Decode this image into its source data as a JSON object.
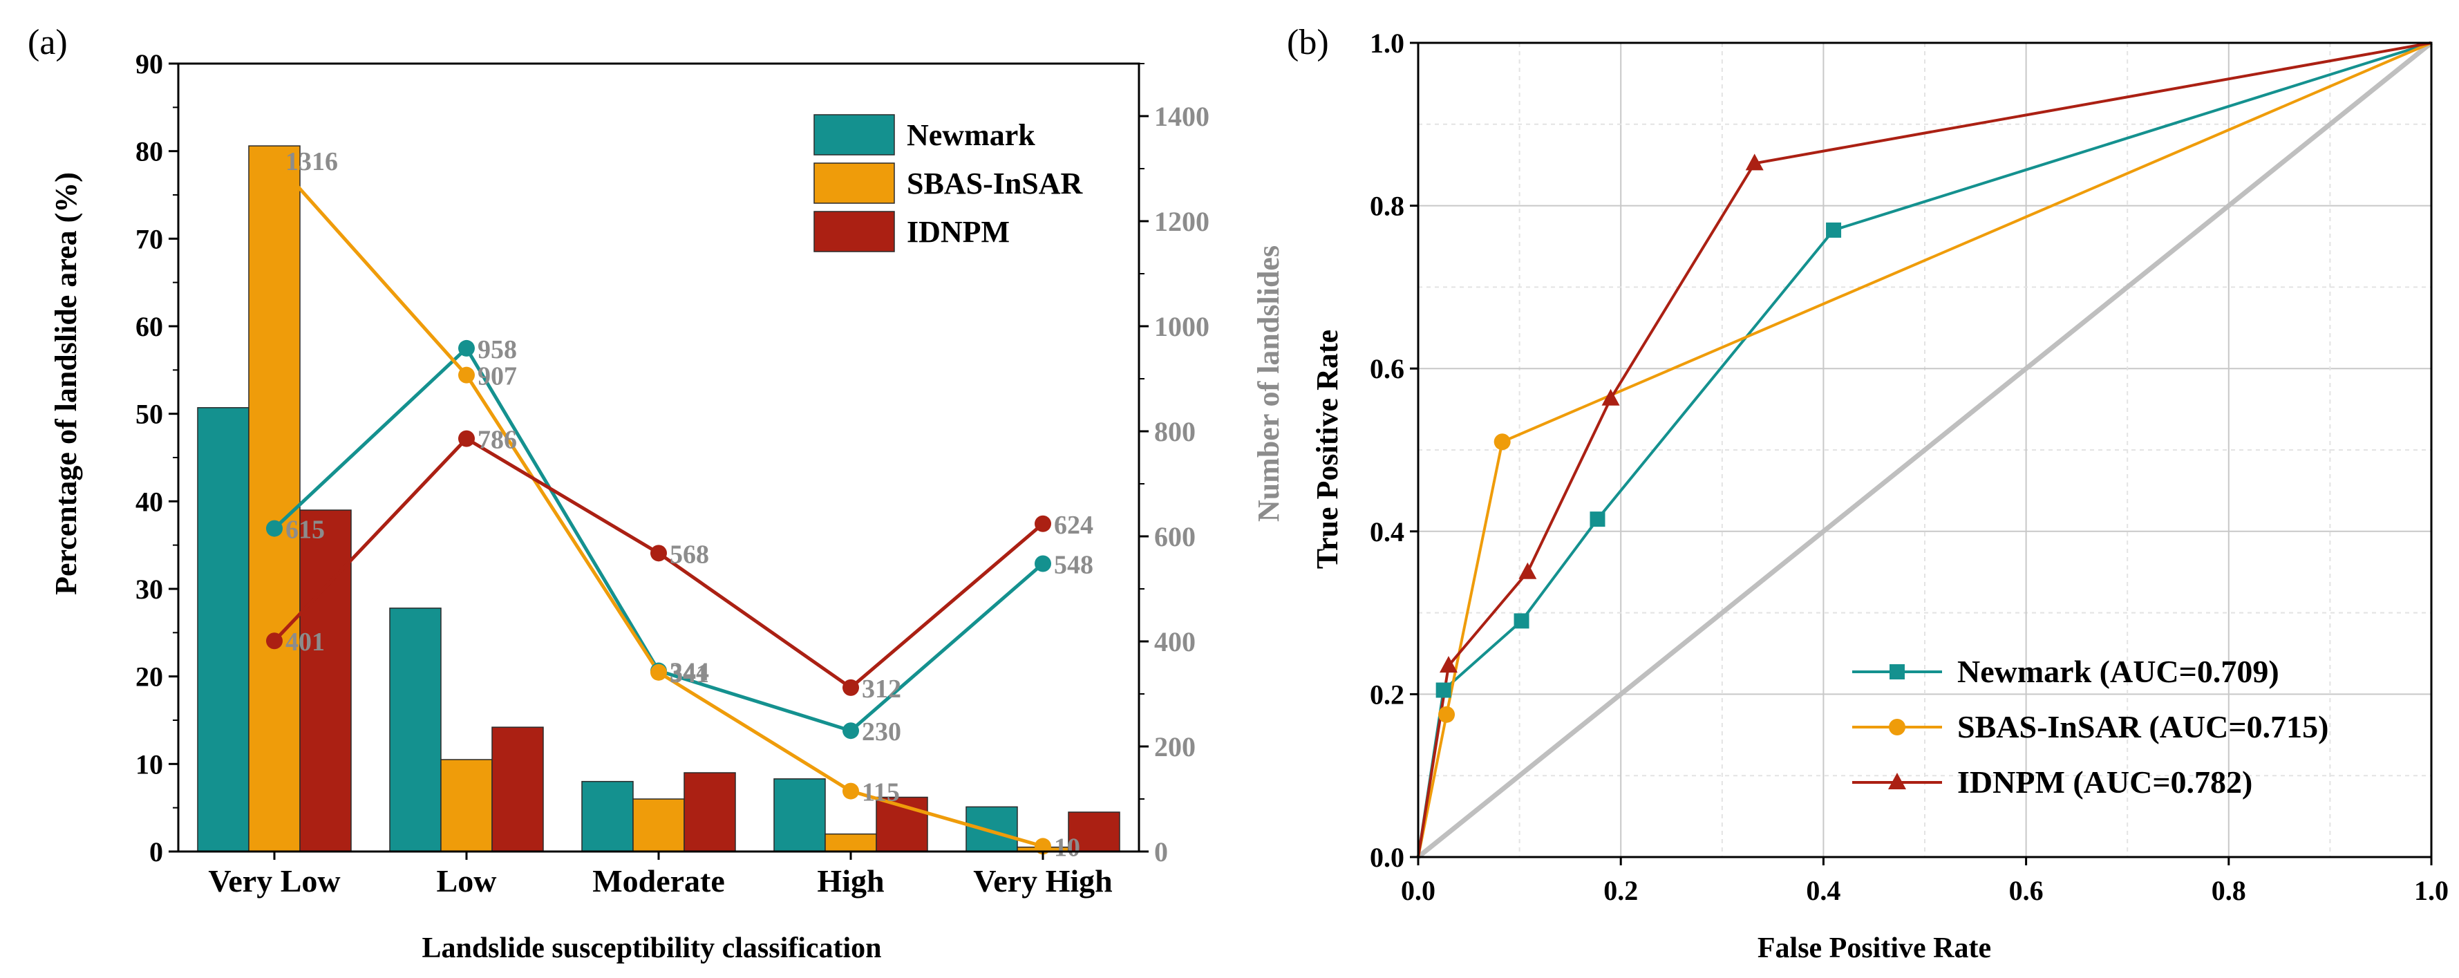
{
  "chart_data": [
    {
      "type": "bar+line",
      "panel_label": "(a)",
      "title": "",
      "xlabel": "Landslide susceptibility classification",
      "ylabel": "Percentage of landslide area (%)",
      "y2label": "Number of landslides",
      "categories": [
        "Very Low",
        "Low",
        "Moderate",
        "High",
        "Very High"
      ],
      "ylim": [
        0,
        90
      ],
      "yticks": [
        0,
        10,
        20,
        30,
        40,
        50,
        60,
        70,
        80,
        90
      ],
      "y2lim": [
        0,
        1500
      ],
      "y2ticks": [
        0,
        200,
        400,
        600,
        800,
        1000,
        1200,
        1400
      ],
      "series": [
        {
          "name": "Newmark",
          "color": "#14918f",
          "bar_values": [
            50.7,
            27.8,
            8.0,
            8.3,
            5.1
          ],
          "line_values": [
            615,
            958,
            344,
            230,
            548
          ]
        },
        {
          "name": "SBAS-InSAR",
          "color": "#ef9c0a",
          "bar_values": [
            80.6,
            10.5,
            6.0,
            2.0,
            0.5
          ],
          "line_values": [
            1316,
            907,
            341,
            115,
            10
          ]
        },
        {
          "name": "IDNPM",
          "color": "#ab2013",
          "bar_values": [
            39.0,
            14.2,
            9.0,
            6.2,
            4.5
          ],
          "line_values": [
            401,
            786,
            568,
            312,
            624
          ]
        }
      ],
      "line_labels": [
        {
          "series": 0,
          "index": 0,
          "text": "615"
        },
        {
          "series": 0,
          "index": 1,
          "text": "958"
        },
        {
          "series": 0,
          "index": 2,
          "text": "344"
        },
        {
          "series": 0,
          "index": 3,
          "text": "230"
        },
        {
          "series": 0,
          "index": 4,
          "text": "548"
        },
        {
          "series": 1,
          "index": 0,
          "text": "1316"
        },
        {
          "series": 1,
          "index": 1,
          "text": "907"
        },
        {
          "series": 1,
          "index": 2,
          "text": "341"
        },
        {
          "series": 1,
          "index": 3,
          "text": "115"
        },
        {
          "series": 1,
          "index": 4,
          "text": "10"
        },
        {
          "series": 2,
          "index": 0,
          "text": "401"
        },
        {
          "series": 2,
          "index": 1,
          "text": "786"
        },
        {
          "series": 2,
          "index": 2,
          "text": "568"
        },
        {
          "series": 2,
          "index": 3,
          "text": "312"
        },
        {
          "series": 2,
          "index": 4,
          "text": "624"
        }
      ],
      "legend": [
        "Newmark",
        "SBAS-InSAR",
        "IDNPM"
      ],
      "legend_position": "top-right",
      "label_color": "#8c8c8c"
    },
    {
      "type": "line",
      "panel_label": "(b)",
      "title": "",
      "xlabel": "False Positive Rate",
      "ylabel": "True Positive Rate",
      "xlim": [
        0,
        1
      ],
      "ylim": [
        0,
        1
      ],
      "xticks": [
        "0.0",
        "0.2",
        "0.4",
        "0.6",
        "0.8",
        "1.0"
      ],
      "yticks": [
        "0.0",
        "0.2",
        "0.4",
        "0.6",
        "0.8",
        "1.0"
      ],
      "grid": true,
      "series": [
        {
          "name": "Newmark (AUC=0.709)",
          "color": "#14918f",
          "marker": "square",
          "x": [
            0,
            0.025,
            0.102,
            0.177,
            0.41,
            1.0
          ],
          "y": [
            0,
            0.205,
            0.29,
            0.415,
            0.77,
            1.0
          ]
        },
        {
          "name": "SBAS-InSAR (AUC=0.715)",
          "color": "#ef9c0a",
          "marker": "circle",
          "x": [
            0,
            0.028,
            0.083,
            1.0
          ],
          "y": [
            0,
            0.175,
            0.51,
            1.0
          ]
        },
        {
          "name": "IDNPM (AUC=0.782)",
          "color": "#ab2013",
          "marker": "triangle",
          "x": [
            0,
            0.03,
            0.108,
            0.19,
            0.332,
            1.0
          ],
          "y": [
            0,
            0.235,
            0.35,
            0.563,
            0.852,
            1.0
          ]
        }
      ],
      "reference_line": {
        "x": [
          0,
          1
        ],
        "y": [
          0,
          1
        ],
        "color": "#bfbfbf"
      },
      "legend_position": "bottom-right"
    }
  ]
}
